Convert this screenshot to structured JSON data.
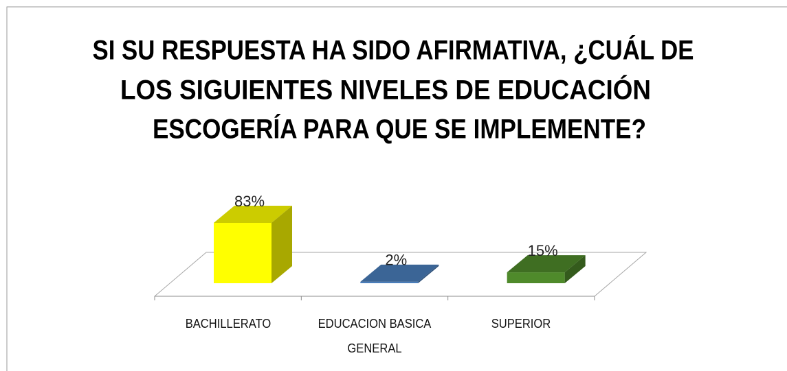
{
  "chart_data": {
    "type": "bar3d",
    "title": [
      "SI SU RESPUESTA HA SIDO AFIRMATIVA, ¿CUÁL DE",
      "LOS SIGUIENTES NIVELES DE EDUCACIÓN",
      "ESCOGERÍA PARA QUE SE IMPLEMENTE?"
    ],
    "categories": [
      "BACHILLERATO",
      "EDUCACION BASICA GENERAL",
      "SUPERIOR"
    ],
    "values": [
      83,
      2,
      15
    ],
    "value_labels": [
      "83%",
      "2%",
      "15%"
    ],
    "colors": [
      "#ffff00",
      "#4a7ebb",
      "#4f8a2b"
    ]
  }
}
